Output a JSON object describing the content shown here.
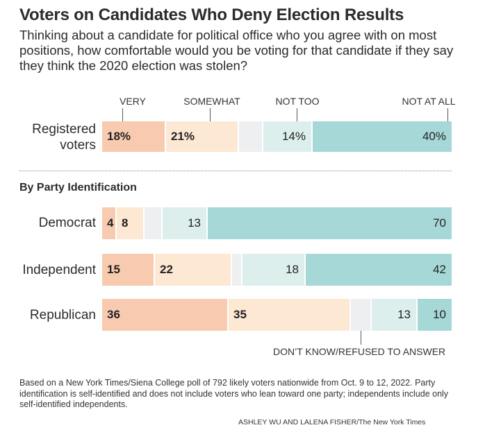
{
  "chart_data": {
    "type": "bar",
    "orientation": "horizontal-stacked",
    "title": "Voters on Candidates Who Deny Election Results",
    "subtitle": "Thinking about a candidate for political office who you agree with on most positions, how comfortable would you be voting for that candidate if they say they think the 2020 election was stolen?",
    "legend": [
      "VERY",
      "SOMEWHAT",
      "NOT TOO",
      "NOT AT ALL"
    ],
    "dk_label": "DON’T KNOW/REFUSED TO ANSWER",
    "section_heading": "By Party Identification",
    "colors": {
      "very": "#f8cbb0",
      "somewhat": "#fde8d4",
      "dk": "#eeeff1",
      "not_too": "#dcefec",
      "not_at_all": "#a6d8d8"
    },
    "groups": [
      {
        "name": "Registered voters",
        "label_lines": [
          "Registered",
          "voters"
        ],
        "values": {
          "very": 18,
          "somewhat": 21,
          "dk": 7,
          "not_too": 14,
          "not_at_all": 40
        },
        "labels": {
          "very": "18%",
          "somewhat": "21%",
          "not_too": "14%",
          "not_at_all": "40%"
        }
      },
      {
        "name": "Democrat",
        "label_lines": [
          "Democrat"
        ],
        "values": {
          "very": 4,
          "somewhat": 8,
          "dk": 5,
          "not_too": 13,
          "not_at_all": 70
        },
        "labels": {
          "very": "4",
          "somewhat": "8",
          "not_too": "13",
          "not_at_all": "70"
        }
      },
      {
        "name": "Independent",
        "label_lines": [
          "Independent"
        ],
        "values": {
          "very": 15,
          "somewhat": 22,
          "dk": 3,
          "not_too": 18,
          "not_at_all": 42
        },
        "labels": {
          "very": "15",
          "somewhat": "22",
          "not_too": "18",
          "not_at_all": "42"
        }
      },
      {
        "name": "Republican",
        "label_lines": [
          "Republican"
        ],
        "values": {
          "very": 36,
          "somewhat": 35,
          "dk": 6,
          "not_too": 13,
          "not_at_all": 10
        },
        "labels": {
          "very": "36",
          "somewhat": "35",
          "not_too": "13",
          "not_at_all": "10"
        }
      }
    ],
    "xlim": [
      0,
      100
    ]
  },
  "footer": {
    "note": "Based on a New York Times/Siena College poll of 792 likely voters nationwide from Oct. 9 to 12, 2022. Party identification is self-identified and does not include voters who lean toward one party; independents include only self-identified independents.",
    "credit": "ASHLEY WU AND LALENA FISHER/The New  York  Times"
  }
}
